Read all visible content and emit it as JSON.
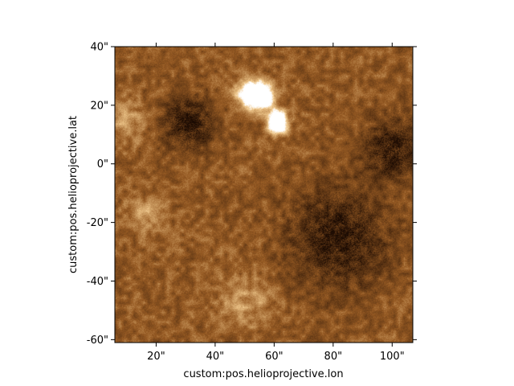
{
  "chart_data": {
    "type": "heatmap",
    "title": "",
    "xlabel": "custom:pos.helioprojective.lon",
    "ylabel": "custom:pos.helioprojective.lat",
    "x_unit": "arcsec",
    "y_unit": "arcsec",
    "xlim": [
      6,
      107
    ],
    "ylim": [
      -61,
      40
    ],
    "x_ticks": [
      20,
      40,
      60,
      80,
      100
    ],
    "x_tick_labels": [
      "20\"",
      "40\"",
      "60\"",
      "80\"",
      "100\""
    ],
    "y_ticks": [
      40,
      20,
      0,
      -20,
      -40,
      -60
    ],
    "y_tick_labels": [
      "40\"",
      "20\"",
      "0\"",
      "-20\"",
      "-40\"",
      "-60\""
    ],
    "colormap": "sdoaia171-like copper-brown",
    "colors": {
      "dark": "#1a0a02",
      "mid": "#8a5520",
      "light": "#f7e6c4",
      "bright": "#ffffff"
    },
    "grid": false,
    "features": [
      {
        "kind": "bright",
        "lon": 52,
        "lat": 24,
        "radius": 5
      },
      {
        "kind": "bright",
        "lon": 56,
        "lat": 23,
        "radius": 4
      },
      {
        "kind": "bright",
        "lon": 61,
        "lat": 13,
        "radius": 3
      },
      {
        "kind": "bright",
        "lon": 61,
        "lat": 16,
        "radius": 3
      },
      {
        "kind": "dark",
        "lon": 31,
        "lat": 14,
        "radius": 9
      },
      {
        "kind": "dark",
        "lon": 82,
        "lat": -25,
        "radius": 17
      },
      {
        "kind": "dark",
        "lon": 100,
        "lat": 5,
        "radius": 10
      },
      {
        "kind": "light",
        "lon": 16,
        "lat": -17,
        "radius": 6
      },
      {
        "kind": "light",
        "lon": 50,
        "lat": -47,
        "radius": 9
      },
      {
        "kind": "light",
        "lon": 8,
        "lat": 15,
        "radius": 8
      }
    ]
  }
}
